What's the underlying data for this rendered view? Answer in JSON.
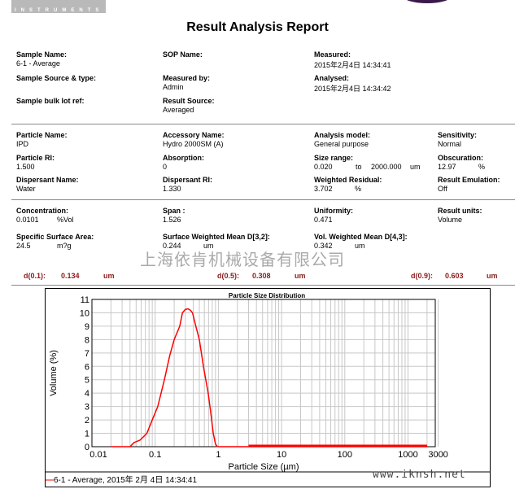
{
  "logo": {
    "text": "INSTRUMENTS"
  },
  "title": "Result Analysis Report",
  "header": [
    {
      "label": "Sample Name:",
      "value": "6-1 - Average"
    },
    {
      "label": "SOP Name:",
      "value": ""
    },
    {
      "label": "Measured:",
      "value": "2015年2月4日 14:34:41"
    },
    {
      "label": "Sample Source & type:",
      "value": ""
    },
    {
      "label": "Measured by:",
      "value": "Admin"
    },
    {
      "label": "Analysed:",
      "value": "2015年2月4日 14:34:42"
    },
    {
      "label": "Sample bulk lot ref:",
      "value": ""
    },
    {
      "label": "Result Source:",
      "value": "Averaged"
    }
  ],
  "params": [
    {
      "label": "Particle Name:",
      "value": "IPD"
    },
    {
      "label": "Accessory Name:",
      "value": "Hydro 2000SM (A)"
    },
    {
      "label": "Analysis model:",
      "value": "General purpose"
    },
    {
      "label": "Sensitivity:",
      "value": "Normal"
    },
    {
      "label": "Particle RI:",
      "value": "1.500"
    },
    {
      "label": "Absorption:",
      "value": "0"
    },
    {
      "label": "Size range:",
      "value": "0.020",
      "to": "to",
      "value2": "2000.000",
      "unit": "um"
    },
    {
      "label": "Obscuration:",
      "value": "12.97",
      "unit": "%"
    },
    {
      "label": "Dispersant Name:",
      "value": "Water"
    },
    {
      "label": "Dispersant RI:",
      "value": "1.330"
    },
    {
      "label": "Weighted Residual:",
      "value": "3.702",
      "unit": "%"
    },
    {
      "label": "Result Emulation:",
      "value": "Off"
    }
  ],
  "results": [
    {
      "label": "Concentration:",
      "value": "0.0101",
      "unit": "%Vol"
    },
    {
      "label": "Span :",
      "value": "1.526"
    },
    {
      "label": "Uniformity:",
      "value": "0.471"
    },
    {
      "label": "Result units:",
      "value": "Volume"
    },
    {
      "label": "Specific Surface Area:",
      "value": "24.5",
      "unit": "m?g"
    },
    {
      "label": "Surface Weighted Mean D[3,2]:",
      "value": "0.244",
      "unit": "um"
    },
    {
      "label": "Vol. Weighted Mean D[4,3]:",
      "value": "0.342",
      "unit": "um"
    }
  ],
  "dvalues": [
    {
      "label": "d(0.1):",
      "value": "0.134",
      "unit": "um"
    },
    {
      "label": "d(0.5):",
      "value": "0.308",
      "unit": "um"
    },
    {
      "label": "d(0.9):",
      "value": "0.603",
      "unit": "um"
    }
  ],
  "watermark": "上海依肯机械设备有限公司",
  "url": "www.iknsh.net",
  "chart_data": {
    "type": "line",
    "title": "Particle Size Distribution",
    "xlabel": "Particle Size (µm)",
    "ylabel": "Volume (%)",
    "xscale": "log",
    "xlim": [
      0.01,
      3000
    ],
    "ylim": [
      0,
      11
    ],
    "xticks": [
      "0.01",
      "0.1",
      "1",
      "10",
      "100",
      "1000",
      "3000"
    ],
    "yticks": [
      "0",
      "1",
      "2",
      "3",
      "4",
      "5",
      "6",
      "7",
      "8",
      "9",
      "10",
      "11"
    ],
    "grid": true,
    "color": "#ff0000",
    "legend": "bottom-left",
    "series": [
      {
        "name": "6-1 - Average, 2015年 2月 4日  14:34:41",
        "x": [
          0.02,
          0.04,
          0.046,
          0.058,
          0.074,
          0.09,
          0.11,
          0.14,
          0.17,
          0.2,
          0.245,
          0.27,
          0.3,
          0.33,
          0.36,
          0.39,
          0.44,
          0.5,
          0.58,
          0.69,
          0.76,
          0.83,
          0.9,
          0.96,
          1,
          2000
        ],
        "y": [
          0,
          0,
          0.3,
          0.5,
          1,
          2,
          3,
          5,
          6.8,
          8,
          9,
          10,
          10.25,
          10.3,
          10.2,
          10,
          9,
          8,
          6,
          4,
          2.5,
          1,
          0.2,
          0.02,
          0,
          0
        ]
      }
    ]
  }
}
